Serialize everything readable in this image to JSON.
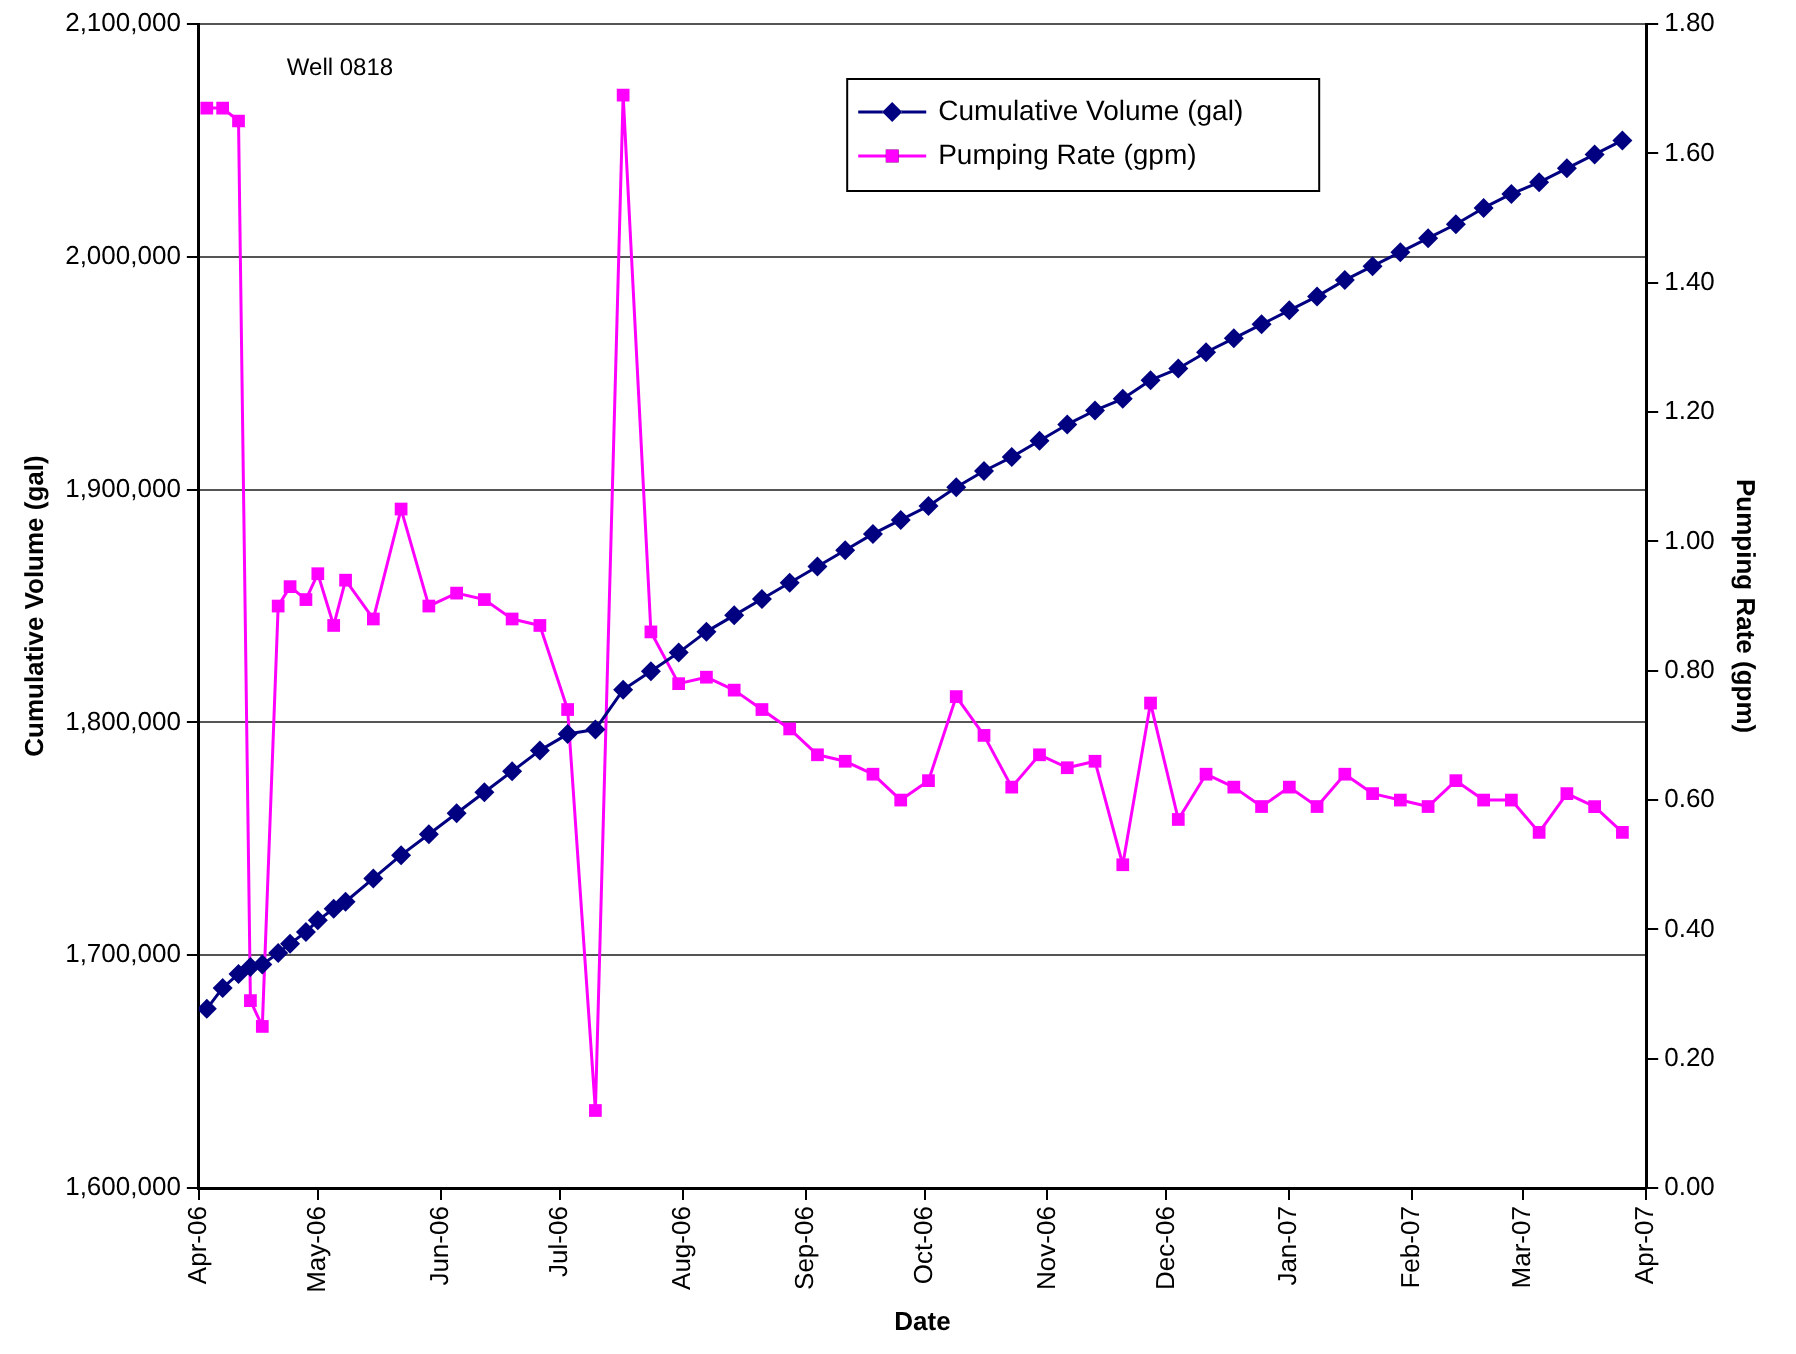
{
  "chart_data": {
    "type": "line",
    "xlabel": "Date",
    "ylabel": "Cumulative Volume (gal)",
    "y2label": "Pumping Rate (gpm)",
    "annotations": [
      "Well 0818"
    ],
    "x": [
      "2006-04-03",
      "2006-04-07",
      "2006-04-11",
      "2006-04-14",
      "2006-04-17",
      "2006-04-21",
      "2006-04-24",
      "2006-04-28",
      "2006-05-01",
      "2006-05-05",
      "2006-05-08",
      "2006-05-15",
      "2006-05-22",
      "2006-05-29",
      "2006-06-05",
      "2006-06-12",
      "2006-06-19",
      "2006-06-26",
      "2006-07-03",
      "2006-07-10",
      "2006-07-17",
      "2006-07-24",
      "2006-07-31",
      "2006-08-07",
      "2006-08-14",
      "2006-08-21",
      "2006-08-28",
      "2006-09-04",
      "2006-09-11",
      "2006-09-18",
      "2006-09-25",
      "2006-10-02",
      "2006-10-09",
      "2006-10-16",
      "2006-10-23",
      "2006-10-30",
      "2006-11-06",
      "2006-11-13",
      "2006-11-20",
      "2006-11-27",
      "2006-12-04",
      "2006-12-11",
      "2006-12-18",
      "2006-12-25",
      "2007-01-01",
      "2007-01-08",
      "2007-01-15",
      "2007-01-22",
      "2007-01-29",
      "2007-02-05",
      "2007-02-12",
      "2007-02-19",
      "2007-02-26",
      "2007-03-05",
      "2007-03-12",
      "2007-03-19",
      "2007-03-26"
    ],
    "series": [
      {
        "name": "Cumulative Volume (gal)",
        "color": "#000080",
        "marker": "diamond",
        "values": [
          1677000,
          1686000,
          1692000,
          1695000,
          1696000,
          1701000,
          1705000,
          1710000,
          1715000,
          1720000,
          1723000,
          1733000,
          1743000,
          1752000,
          1761000,
          1770000,
          1779000,
          1788000,
          1795000,
          1797000,
          1814000,
          1822000,
          1830000,
          1839000,
          1846000,
          1853000,
          1860000,
          1867000,
          1874000,
          1881000,
          1887000,
          1893000,
          1901000,
          1908000,
          1914000,
          1921000,
          1928000,
          1934000,
          1939000,
          1947000,
          1952000,
          1959000,
          1965000,
          1971000,
          1977000,
          1983000,
          1990000,
          1996000,
          2002000,
          2008000,
          2014000,
          2021000,
          2027000,
          2032000,
          2038000,
          2044000,
          2050000
        ]
      },
      {
        "name": "Pumping Rate (gpm)",
        "color": "#ff00ff",
        "marker": "square",
        "axis": "y2",
        "values": [
          1.67,
          1.67,
          1.65,
          0.29,
          0.25,
          0.9,
          0.93,
          0.91,
          0.95,
          0.87,
          0.94,
          0.88,
          1.05,
          0.9,
          0.92,
          0.91,
          0.88,
          0.87,
          0.74,
          0.12,
          1.69,
          0.86,
          0.78,
          0.79,
          0.77,
          0.74,
          0.71,
          0.67,
          0.66,
          0.64,
          0.6,
          0.63,
          0.76,
          0.7,
          0.62,
          0.67,
          0.65,
          0.66,
          0.5,
          0.75,
          0.57,
          0.64,
          0.62,
          0.59,
          0.62,
          0.59,
          0.64,
          0.61,
          0.6,
          0.59,
          0.63,
          0.6,
          0.6,
          0.55,
          0.61,
          0.59,
          0.55
        ]
      }
    ],
    "xlim": [
      "2006-04-01",
      "2007-04-01"
    ],
    "xticks": [
      {
        "value": "2006-04-01",
        "label": "Apr-06"
      },
      {
        "value": "2006-05-01",
        "label": "May-06"
      },
      {
        "value": "2006-06-01",
        "label": "Jun-06"
      },
      {
        "value": "2006-07-01",
        "label": "Jul-06"
      },
      {
        "value": "2006-08-01",
        "label": "Aug-06"
      },
      {
        "value": "2006-09-01",
        "label": "Sep-06"
      },
      {
        "value": "2006-10-01",
        "label": "Oct-06"
      },
      {
        "value": "2006-11-01",
        "label": "Nov-06"
      },
      {
        "value": "2006-12-01",
        "label": "Dec-06"
      },
      {
        "value": "2007-01-01",
        "label": "Jan-07"
      },
      {
        "value": "2007-02-01",
        "label": "Feb-07"
      },
      {
        "value": "2007-03-01",
        "label": "Mar-07"
      },
      {
        "value": "2007-04-01",
        "label": "Apr-07"
      }
    ],
    "ylim": [
      1600000,
      2100000
    ],
    "yticks": [
      {
        "value": 1600000,
        "label": "1,600,000"
      },
      {
        "value": 1700000,
        "label": "1,700,000"
      },
      {
        "value": 1800000,
        "label": "1,800,000"
      },
      {
        "value": 1900000,
        "label": "1,900,000"
      },
      {
        "value": 2000000,
        "label": "2,000,000"
      },
      {
        "value": 2100000,
        "label": "2,100,000"
      }
    ],
    "y2lim": [
      0,
      1.8
    ],
    "y2ticks": [
      {
        "value": 0,
        "label": "0.00"
      },
      {
        "value": 0.2,
        "label": "0.20"
      },
      {
        "value": 0.4,
        "label": "0.40"
      },
      {
        "value": 0.6,
        "label": "0.60"
      },
      {
        "value": 0.8,
        "label": "0.80"
      },
      {
        "value": 1.0,
        "label": "1.00"
      },
      {
        "value": 1.2,
        "label": "1.20"
      },
      {
        "value": 1.4,
        "label": "1.40"
      },
      {
        "value": 1.6,
        "label": "1.60"
      },
      {
        "value": 1.8,
        "label": "1.80"
      }
    ],
    "grid": "y",
    "legend": "top right",
    "line_style": "solid"
  }
}
